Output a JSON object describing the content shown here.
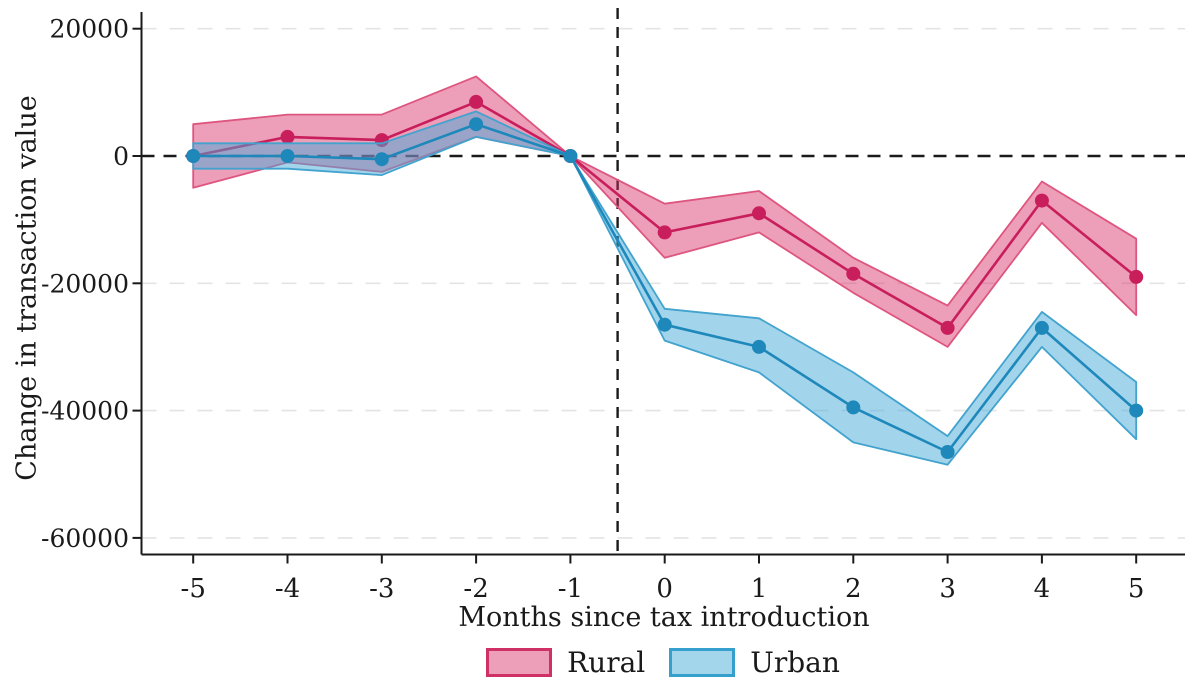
{
  "figure": {
    "background": "#ffffff",
    "ink_color": "#1a1a1a"
  },
  "chart_data": {
    "type": "line",
    "title": "",
    "xlabel": "Months since tax introduction",
    "ylabel": "Change in transaction value",
    "x": [
      -5,
      -4,
      -3,
      -2,
      -1,
      0,
      1,
      2,
      3,
      4,
      5
    ],
    "x_tick_labels": [
      "-5",
      "-4",
      "-3",
      "-2",
      "-1",
      "0",
      "1",
      "2",
      "3",
      "4",
      "5"
    ],
    "y_ticks": [
      {
        "value": 20000,
        "label": "20000"
      },
      {
        "value": 0,
        "label": "0"
      },
      {
        "value": -20000,
        "label": "-20000"
      },
      {
        "value": -40000,
        "label": "-40000"
      },
      {
        "value": -60000,
        "label": "-60000"
      }
    ],
    "ylim": [
      -62500,
      22500
    ],
    "grid": "horizontal-dashed",
    "grid_color": "#e4e4e4",
    "ink": "#1a1a1a",
    "reference_lines": {
      "hline_y": 0,
      "vline_x": -0.5,
      "style": "dashed-black"
    },
    "legend_position": "bottom-center",
    "series": [
      {
        "name": "Rural",
        "color": "#c81e5b",
        "band_edge": "#de567f",
        "band_fill": "rgba(214,40,100,0.45)",
        "legend_fill": "#ed9fb9",
        "legend_edge": "#cf3166",
        "values": [
          0,
          3000,
          2500,
          8500,
          0,
          -12000,
          -9000,
          -18500,
          -27000,
          -7000,
          -19000
        ],
        "ci_high": [
          5000,
          6500,
          6500,
          12500,
          0,
          -7500,
          -5500,
          -16000,
          -23500,
          -4000,
          -13000
        ],
        "ci_low": [
          -5000,
          -1000,
          -2500,
          3000,
          0,
          -16000,
          -12000,
          -21500,
          -30000,
          -10500,
          -25000
        ]
      },
      {
        "name": "Urban",
        "color": "#1e88bb",
        "band_edge": "#42a3ce",
        "band_fill": "rgba(70,170,215,0.5)",
        "legend_fill": "#a3d5eb",
        "legend_edge": "#35a0cd",
        "values": [
          0,
          0,
          -500,
          5000,
          0,
          -26500,
          -30000,
          -39500,
          -46500,
          -27000,
          -40000
        ],
        "ci_high": [
          2000,
          2000,
          2000,
          7000,
          0,
          -24000,
          -25500,
          -34000,
          -44000,
          -24500,
          -35500
        ],
        "ci_low": [
          -2000,
          -2000,
          -3000,
          3000,
          0,
          -29000,
          -34000,
          -45000,
          -48500,
          -30000,
          -44500
        ]
      }
    ]
  }
}
